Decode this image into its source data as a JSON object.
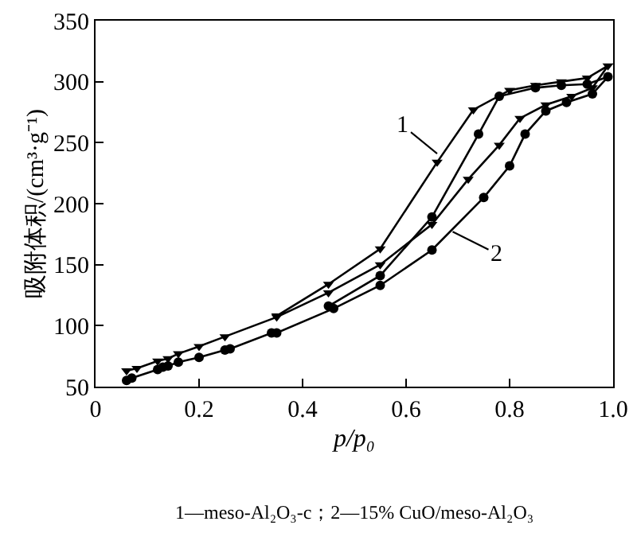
{
  "chart_data": {
    "type": "line",
    "xlabel": "p/p₀",
    "ylabel": "吸附体积/(cm³·g⁻¹)",
    "xlim": [
      0,
      1
    ],
    "xticks": [
      0,
      0.2,
      0.4,
      0.6,
      0.8,
      {
        "value": 1,
        "label": "1.0"
      }
    ],
    "ylim": [
      50,
      350
    ],
    "yticks": [
      50,
      100,
      150,
      200,
      250,
      300,
      350
    ],
    "line_style": "solid",
    "series": [
      {
        "color": "#000000",
        "marker": "triangle",
        "x": [
          0.06,
          0.08,
          0.12,
          0.14,
          0.16,
          0.2,
          0.25,
          0.35,
          0.45,
          0.55,
          0.65,
          0.72,
          0.78,
          0.82,
          0.87,
          0.92,
          0.96,
          0.99,
          0.95,
          0.9,
          0.85,
          0.8,
          0.73,
          0.66,
          0.55,
          0.45,
          0.35
        ],
        "values": [
          63,
          65,
          71,
          73,
          77,
          83,
          91,
          107,
          127,
          150,
          183,
          220,
          248,
          270,
          281,
          288,
          295,
          313,
          303,
          300,
          297,
          293,
          277,
          234,
          163,
          134,
          108
        ]
      },
      {
        "color": "#000000",
        "marker": "circle",
        "x": [
          0.06,
          0.07,
          0.12,
          0.13,
          0.14,
          0.16,
          0.2,
          0.25,
          0.26,
          0.34,
          0.35,
          0.46,
          0.55,
          0.65,
          0.75,
          0.8,
          0.83,
          0.87,
          0.91,
          0.96,
          0.99,
          0.95,
          0.9,
          0.85,
          0.78,
          0.74,
          0.65,
          0.55,
          0.45
        ],
        "values": [
          55,
          57,
          64,
          66,
          67,
          70,
          74,
          80,
          81,
          94,
          94,
          114,
          133,
          162,
          205,
          231,
          257,
          276,
          283,
          290,
          304,
          298,
          297,
          295,
          288,
          257,
          189,
          141,
          116
        ]
      }
    ],
    "annotations": [
      {
        "text": "1",
        "x": 0.66,
        "y": 241
      },
      {
        "text": "2",
        "x": 0.69,
        "y": 177
      },
      "1—meso-Al₂O₃-c；2—15% CuO/meso-Al₂O₃"
    ]
  }
}
